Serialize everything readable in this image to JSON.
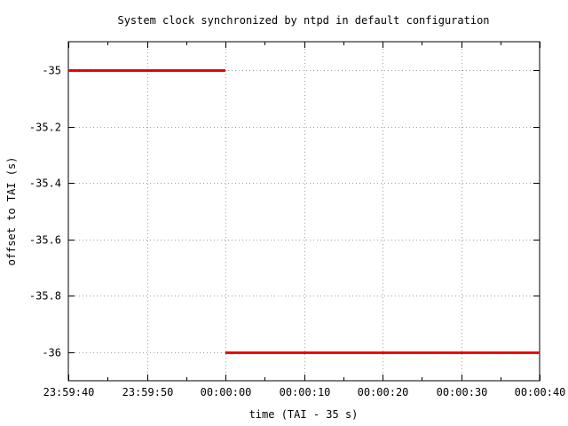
{
  "chart_data": {
    "type": "line",
    "title": "System clock synchronized by ntpd in default configuration",
    "xlabel": "time (TAI - 35 s)",
    "ylabel": "offset to TAI (s)",
    "xlim": [
      "23:59:40",
      "00:00:40"
    ],
    "ylim": [
      -36.1,
      -34.9
    ],
    "x_ticks": [
      "23:59:40",
      "23:59:50",
      "00:00:00",
      "00:00:10",
      "00:00:20",
      "00:00:30",
      "00:00:40"
    ],
    "y_ticks": [
      "-35",
      "-35.2",
      "-35.4",
      "-35.6",
      "-35.8",
      "-36"
    ],
    "y_tick_values": [
      -35,
      -35.2,
      -35.4,
      -35.6,
      -35.8,
      -36
    ],
    "grid": true,
    "series": [
      {
        "color": "#ff0000",
        "segments": [
          {
            "x": [
              "23:59:40",
              "00:00:00"
            ],
            "y": [
              -35,
              -35
            ]
          },
          {
            "x": [
              "00:00:00",
              "00:00:40"
            ],
            "y": [
              -36,
              -36
            ]
          }
        ]
      }
    ]
  }
}
